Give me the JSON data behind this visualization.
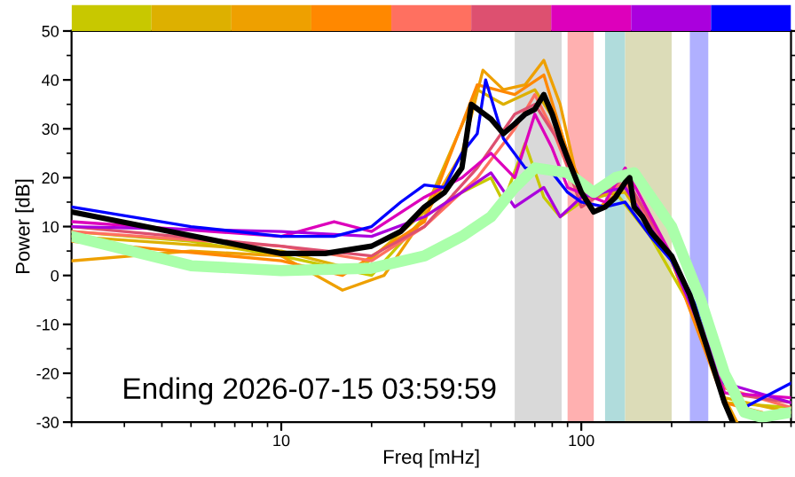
{
  "chart_data": {
    "type": "line",
    "xlabel": "Freq [mHz]",
    "ylabel": "Power [dB]",
    "log": "x",
    "xlim": [
      2,
      500
    ],
    "xticks": [
      10,
      100
    ],
    "ylim": [
      -30,
      50
    ],
    "yticks": [
      -30,
      -20,
      -10,
      0,
      10,
      20,
      30,
      40,
      50
    ],
    "grid": false,
    "legend": false,
    "annotations": [
      "Ending 2026-07-15 03:59:59"
    ],
    "bands": [
      {
        "axis": "x",
        "from": 60,
        "to": 86,
        "color": "#d9d9d9"
      },
      {
        "axis": "x",
        "from": 90,
        "to": 110,
        "color": "#ffb0b0"
      },
      {
        "axis": "x",
        "from": 120,
        "to": 140,
        "color": "#b0dcdc"
      },
      {
        "axis": "x",
        "from": 140,
        "to": 200,
        "color": "#dcdcb8"
      },
      {
        "axis": "x",
        "from": 230,
        "to": 265,
        "color": "#b0b0ff"
      }
    ],
    "series": [
      {
        "color": "#c8c800",
        "x": [
          2,
          5,
          10,
          20,
          30,
          40,
          50,
          55,
          65,
          75,
          85,
          100,
          130,
          170,
          250,
          300,
          500
        ],
        "values": [
          9,
          7,
          4,
          0,
          12,
          17,
          20,
          15,
          27,
          16,
          12,
          15,
          17,
          8,
          -10,
          -26,
          -27
        ]
      },
      {
        "color": "#ddb000",
        "x": [
          2,
          10,
          18,
          30,
          45,
          55,
          70,
          85,
          100,
          140,
          200,
          300,
          500
        ],
        "values": [
          8,
          5,
          1,
          13,
          38,
          35,
          38,
          30,
          16,
          17,
          3,
          -25,
          -28
        ]
      },
      {
        "color": "#eea000",
        "x": [
          2,
          5,
          10,
          16,
          22,
          30,
          40,
          47,
          55,
          65,
          75,
          85,
          95,
          110,
          140,
          170,
          200,
          250,
          300,
          330
        ],
        "values": [
          3,
          5,
          4,
          -3,
          0,
          12,
          25,
          42,
          38,
          39,
          44,
          35,
          22,
          13,
          18,
          10,
          3,
          -10,
          -25,
          -30
        ]
      },
      {
        "color": "#ff8800",
        "x": [
          2,
          10,
          16,
          30,
          45,
          60,
          75,
          90,
          110,
          140,
          200,
          300,
          400
        ],
        "values": [
          7,
          3,
          0,
          11,
          39,
          37,
          41,
          25,
          13,
          18,
          3,
          -26,
          -28
        ]
      },
      {
        "color": "#ff7060",
        "x": [
          2,
          10,
          20,
          30,
          45,
          60,
          70,
          80,
          100,
          140,
          200,
          300,
          500
        ],
        "values": [
          9,
          6,
          3,
          10,
          20,
          30,
          37,
          30,
          15,
          19,
          4,
          -23,
          -27
        ]
      },
      {
        "color": "#dd5070",
        "x": [
          2,
          10,
          20,
          30,
          45,
          60,
          70,
          85,
          100,
          140,
          200,
          300,
          500
        ],
        "values": [
          10,
          6,
          4,
          10,
          22,
          33,
          35,
          27,
          14,
          20,
          4,
          -24,
          -26
        ]
      },
      {
        "color": "#dd00bb",
        "x": [
          2,
          10,
          15,
          20,
          30,
          40,
          50,
          60,
          70,
          80,
          90,
          120,
          140,
          200,
          250,
          300,
          500
        ],
        "values": [
          11,
          8,
          11,
          9,
          16,
          20,
          25,
          20,
          33,
          26,
          18,
          15,
          22,
          4,
          -10,
          -24,
          -25
        ]
      },
      {
        "color": "#aa00dd",
        "x": [
          2,
          10,
          20,
          30,
          40,
          50,
          60,
          75,
          85,
          100,
          140,
          200,
          300,
          500
        ],
        "values": [
          10,
          9,
          8,
          12,
          17,
          21,
          14,
          18,
          12,
          16,
          18,
          3,
          -22,
          -26
        ]
      },
      {
        "color": "#0000ff",
        "x": [
          2,
          5,
          10,
          15,
          20,
          25,
          30,
          35,
          40,
          45,
          48,
          55,
          65,
          80,
          90,
          100,
          120,
          140,
          170,
          200,
          250,
          300,
          350,
          500
        ],
        "values": [
          14,
          10,
          8,
          8,
          10,
          15,
          18.5,
          18,
          25,
          29,
          40,
          28,
          22,
          21,
          17,
          15,
          14,
          15,
          8,
          3,
          -8,
          -22,
          -27,
          -22
        ]
      },
      {
        "color": "#aaffaa",
        "x": [
          2,
          5,
          10,
          20,
          30,
          40,
          50,
          60,
          70,
          90,
          110,
          130,
          150,
          200,
          250,
          300,
          350,
          400,
          500
        ],
        "values": [
          8,
          2,
          1,
          1.5,
          4,
          8,
          12,
          18,
          22,
          21,
          17,
          20,
          21,
          10,
          -5,
          -20,
          -28,
          -29,
          -28
        ]
      },
      {
        "color": "#000000",
        "x": [
          2,
          10,
          14,
          20,
          25,
          30,
          35,
          40,
          43,
          50,
          55,
          60,
          65,
          70,
          75,
          80,
          85,
          90,
          100,
          110,
          120,
          130,
          140,
          145,
          150,
          160,
          170,
          200,
          230,
          260,
          300,
          320
        ],
        "values": [
          13,
          4.5,
          4.5,
          6,
          9,
          14,
          17,
          22,
          35,
          32,
          29,
          31,
          33,
          34,
          37,
          33,
          28,
          24,
          17,
          13,
          14,
          16,
          19,
          20,
          14,
          12,
          9,
          4,
          -4,
          -14,
          -26,
          -30
        ]
      }
    ]
  }
}
